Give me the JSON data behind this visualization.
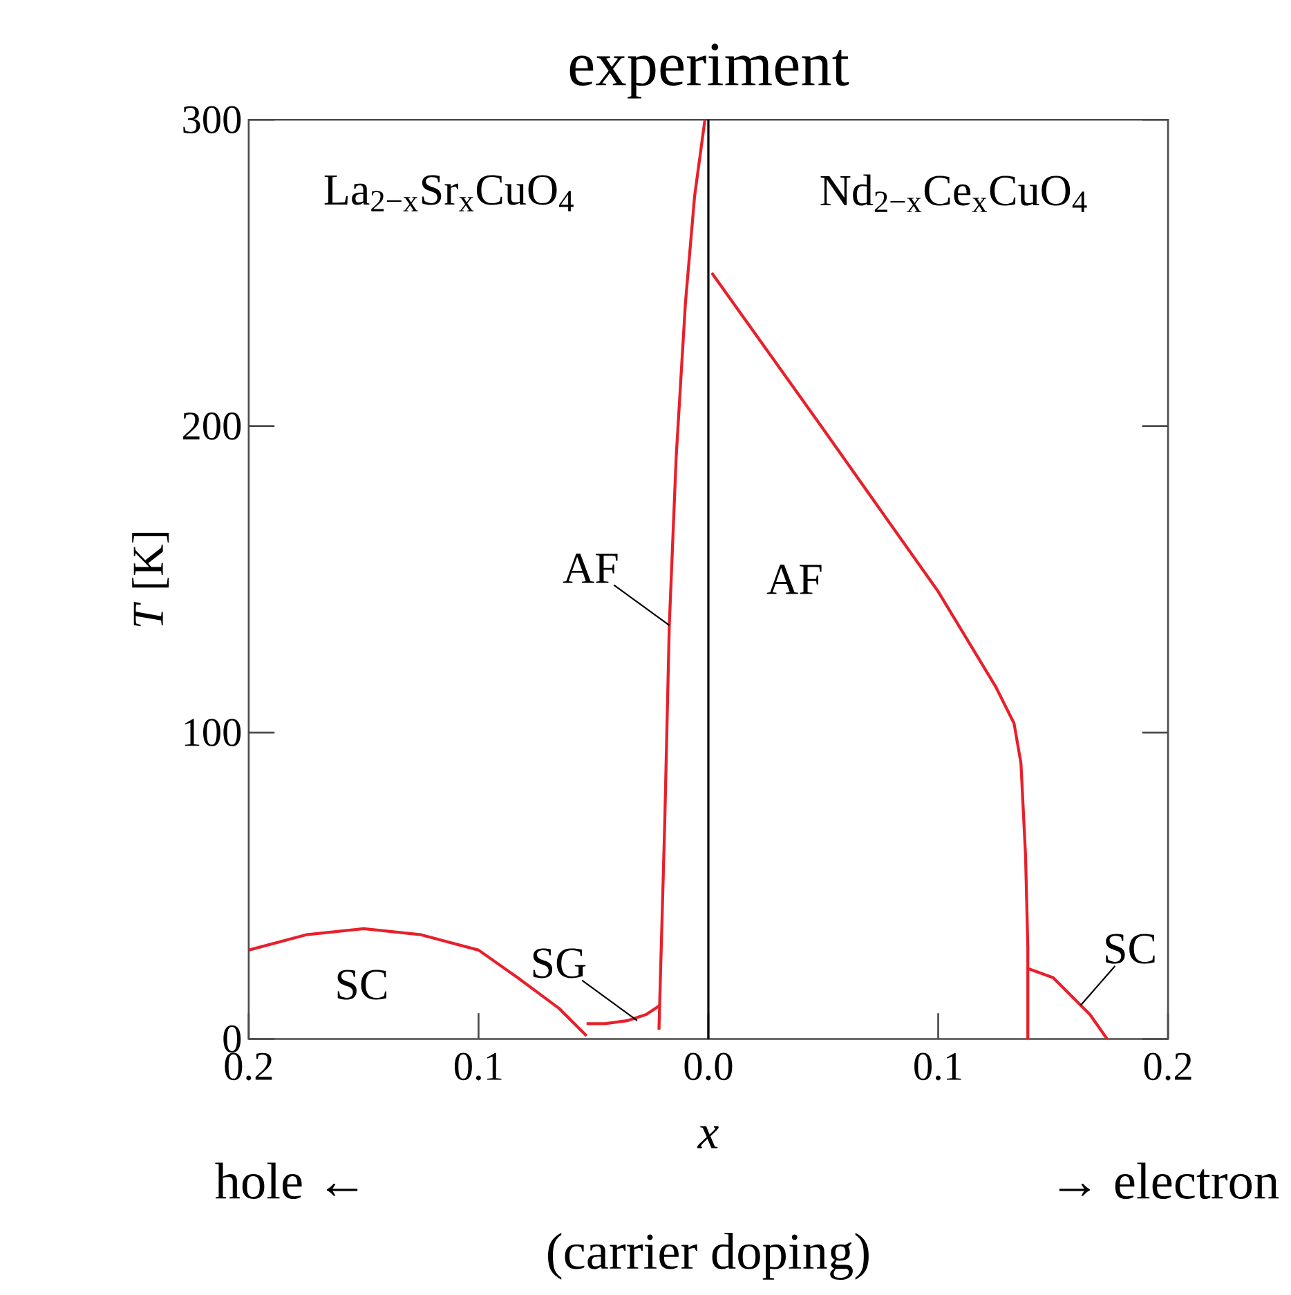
{
  "chart_data": {
    "type": "line",
    "title": "experiment",
    "xlabel": "*x*",
    "ylabel": "*T* [K]",
    "xlim": [
      -0.2,
      0.2
    ],
    "ylim": [
      0,
      300
    ],
    "xticks": [
      {
        "value": -0.2,
        "label": "0.2"
      },
      {
        "value": -0.1,
        "label": "0.1"
      },
      {
        "value": 0,
        "label": "0.0"
      },
      {
        "value": 0.1,
        "label": "0.1"
      },
      {
        "value": 0.2,
        "label": "0.2"
      }
    ],
    "yticks": [
      0,
      100,
      200,
      300
    ],
    "series": [
      {
        "color": "#e8202a",
        "x": [
          -0.0215,
          -0.019,
          -0.017,
          -0.014,
          -0.01,
          -0.006,
          -0.0015
        ],
        "values": [
          3,
          70,
          135,
          190,
          240,
          275,
          300
        ]
      },
      {
        "color": "#e8202a",
        "x": [
          -0.2,
          -0.175,
          -0.15,
          -0.125,
          -0.1,
          -0.083,
          -0.065,
          -0.053
        ],
        "values": [
          29,
          34,
          36,
          34,
          29,
          20,
          10,
          1
        ]
      },
      {
        "color": "#e8202a",
        "x": [
          -0.053,
          -0.045,
          -0.035,
          -0.027,
          -0.021
        ],
        "values": [
          5,
          5,
          6,
          8,
          11
        ]
      },
      {
        "color": "#e8202a",
        "x": [
          0.0015,
          0.05,
          0.1,
          0.125,
          0.133,
          0.136,
          0.138,
          0.139,
          0.139
        ],
        "values": [
          250,
          199,
          146,
          115,
          103,
          90,
          60,
          30,
          0
        ]
      },
      {
        "color": "#e8202a",
        "x": [
          0.139,
          0.15,
          0.158,
          0.166,
          0.1735
        ],
        "values": [
          23,
          20,
          14,
          8,
          0
        ]
      }
    ],
    "ref_lines": [
      {
        "axis": "x",
        "value": 0,
        "color": "#000000"
      }
    ],
    "annotations": [
      "La$_{2−x}$Sr$_{x}$CuO$_{4}$",
      "Nd$_{2−x}$Ce$_{x}$CuO$_{4}$",
      "AF",
      "SC",
      {
        "text": "AF",
        "x": -0.017,
        "y": 135
      },
      {
        "text": "SG",
        "x": -0.031,
        "y": 6
      },
      {
        "text": "SC",
        "x": 0.162,
        "y": 11
      },
      "hole ←",
      "→ electron",
      "(carrier doping)"
    ]
  }
}
